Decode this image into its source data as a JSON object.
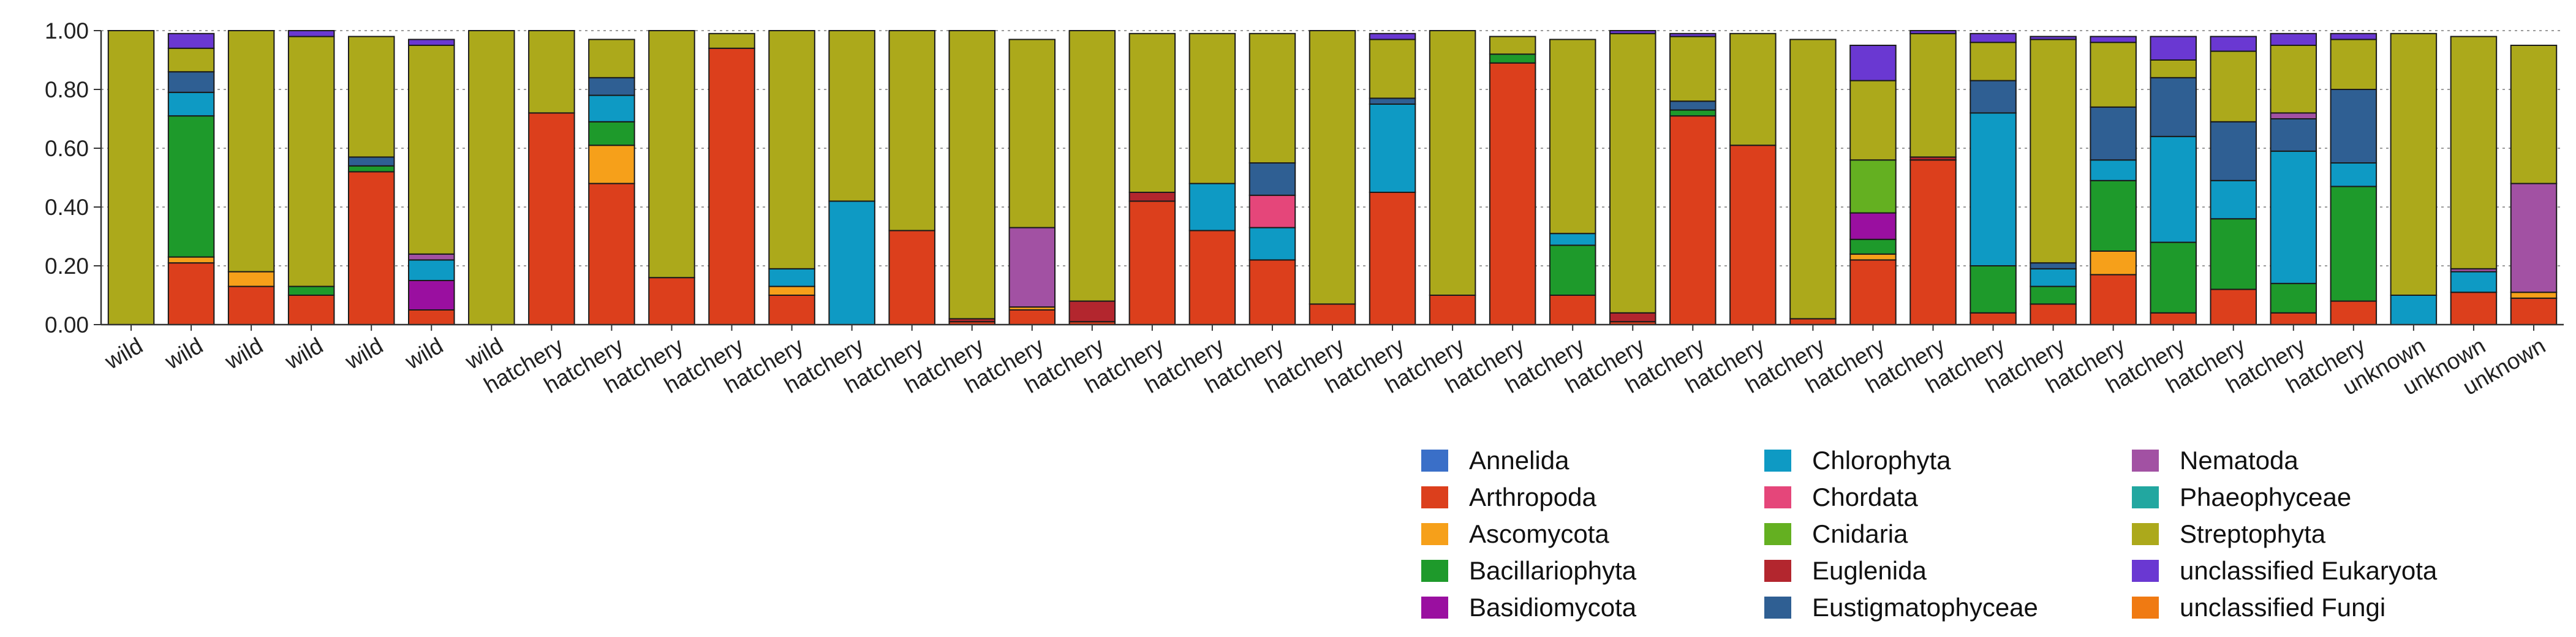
{
  "chart_data": {
    "type": "bar",
    "stacked": true,
    "ylim": [
      0,
      1
    ],
    "yticks": [
      "0.00",
      "0.20",
      "0.40",
      "0.60",
      "0.80",
      "1.00"
    ],
    "grid": "horizontal dotted",
    "legend_position": "bottom-right",
    "categories": [
      "wild",
      "wild",
      "wild",
      "wild",
      "wild",
      "wild",
      "wild",
      "hatchery",
      "hatchery",
      "hatchery",
      "hatchery",
      "hatchery",
      "hatchery",
      "hatchery",
      "hatchery",
      "hatchery",
      "hatchery",
      "hatchery",
      "hatchery",
      "hatchery",
      "hatchery",
      "hatchery",
      "hatchery",
      "hatchery",
      "hatchery",
      "hatchery",
      "hatchery",
      "hatchery",
      "hatchery",
      "hatchery",
      "hatchery",
      "hatchery",
      "hatchery",
      "hatchery",
      "hatchery",
      "hatchery",
      "hatchery",
      "hatchery",
      "unknown",
      "unknown",
      "unknown"
    ],
    "series": [
      {
        "name": "Annelida",
        "color": "#3a6fc8",
        "values": [
          0,
          0,
          0,
          0,
          0,
          0,
          0,
          0,
          0,
          0,
          0,
          0,
          0,
          0,
          0,
          0,
          0,
          0,
          0,
          0,
          0,
          0,
          0,
          0,
          0,
          0,
          0,
          0,
          0,
          0,
          0,
          0,
          0,
          0,
          0,
          0,
          0,
          0,
          0,
          0,
          0
        ]
      },
      {
        "name": "Arthropoda",
        "color": "#dc3f1c",
        "values": [
          0,
          0.21,
          0.13,
          0.1,
          0.52,
          0.05,
          0,
          0.72,
          0.48,
          0.16,
          0.94,
          0.1,
          0,
          0.32,
          0.01,
          0.05,
          0.01,
          0.42,
          0.32,
          0.22,
          0.07,
          0.45,
          0.1,
          0.89,
          0.1,
          0.01,
          0.71,
          0.61,
          0.02,
          0.22,
          0.56,
          0.04,
          0.07,
          0.17,
          0.04,
          0.12,
          0.04,
          0.08,
          0,
          0.11,
          0.09
        ]
      },
      {
        "name": "Ascomycota",
        "color": "#f6a01a",
        "values": [
          0,
          0.02,
          0.05,
          0,
          0,
          0,
          0,
          0,
          0.13,
          0,
          0,
          0.03,
          0,
          0,
          0,
          0.01,
          0,
          0,
          0,
          0,
          0,
          0,
          0,
          0,
          0,
          0,
          0,
          0,
          0,
          0.02,
          0,
          0,
          0,
          0.08,
          0,
          0,
          0,
          0,
          0,
          0,
          0.02
        ]
      },
      {
        "name": "Bacillariophyta",
        "color": "#1e9a2b",
        "values": [
          0,
          0.48,
          0,
          0.03,
          0.02,
          0,
          0,
          0,
          0.08,
          0,
          0,
          0,
          0,
          0,
          0,
          0,
          0,
          0,
          0,
          0,
          0,
          0,
          0,
          0.03,
          0.17,
          0,
          0.02,
          0,
          0,
          0.05,
          0,
          0.16,
          0.06,
          0.24,
          0.24,
          0.24,
          0.1,
          0.39,
          0,
          0,
          0
        ]
      },
      {
        "name": "Basidiomycota",
        "color": "#9a0fa0",
        "values": [
          0,
          0,
          0,
          0,
          0,
          0.1,
          0,
          0,
          0,
          0,
          0,
          0,
          0,
          0,
          0,
          0,
          0,
          0,
          0,
          0,
          0,
          0,
          0,
          0,
          0,
          0,
          0,
          0,
          0,
          0.09,
          0,
          0,
          0,
          0,
          0,
          0,
          0,
          0,
          0,
          0,
          0
        ]
      },
      {
        "name": "Chlorophyta",
        "color": "#0e9ac4",
        "values": [
          0,
          0.08,
          0,
          0,
          0,
          0.07,
          0,
          0,
          0.09,
          0,
          0,
          0.06,
          0.42,
          0,
          0,
          0,
          0,
          0,
          0.16,
          0.11,
          0,
          0.3,
          0,
          0,
          0.04,
          0,
          0,
          0,
          0,
          0,
          0,
          0.52,
          0.06,
          0.07,
          0.36,
          0.13,
          0.45,
          0.08,
          0.1,
          0.07,
          0
        ]
      },
      {
        "name": "Chordata",
        "color": "#e5467a",
        "values": [
          0,
          0,
          0,
          0,
          0,
          0,
          0,
          0,
          0,
          0,
          0,
          0,
          0,
          0,
          0,
          0,
          0,
          0,
          0,
          0.11,
          0,
          0,
          0,
          0,
          0,
          0,
          0,
          0,
          0,
          0,
          0,
          0,
          0,
          0,
          0,
          0,
          0,
          0,
          0,
          0,
          0
        ]
      },
      {
        "name": "Cnidaria",
        "color": "#64b021",
        "values": [
          0,
          0,
          0,
          0,
          0,
          0,
          0,
          0,
          0,
          0,
          0,
          0,
          0,
          0,
          0,
          0,
          0,
          0,
          0,
          0,
          0,
          0,
          0,
          0,
          0,
          0,
          0,
          0,
          0,
          0.18,
          0,
          0,
          0,
          0,
          0,
          0,
          0,
          0,
          0,
          0,
          0
        ]
      },
      {
        "name": "Euglenida",
        "color": "#b3262e",
        "values": [
          0,
          0,
          0,
          0,
          0,
          0,
          0,
          0,
          0,
          0,
          0,
          0,
          0,
          0,
          0.01,
          0,
          0.07,
          0.03,
          0,
          0,
          0,
          0,
          0,
          0,
          0,
          0.03,
          0,
          0,
          0,
          0,
          0.01,
          0,
          0,
          0,
          0,
          0,
          0,
          0,
          0,
          0,
          0
        ]
      },
      {
        "name": "Eustigmatophyceae",
        "color": "#2f5f93",
        "values": [
          0,
          0.07,
          0,
          0,
          0.03,
          0,
          0,
          0,
          0.06,
          0,
          0,
          0,
          0,
          0,
          0,
          0,
          0,
          0,
          0,
          0.11,
          0,
          0.02,
          0,
          0,
          0,
          0,
          0.03,
          0,
          0,
          0,
          0,
          0.11,
          0.02,
          0.18,
          0.2,
          0.2,
          0.11,
          0.25,
          0,
          0,
          0
        ]
      },
      {
        "name": "Nematoda",
        "color": "#a251a3",
        "values": [
          0,
          0,
          0,
          0,
          0,
          0.02,
          0,
          0,
          0,
          0,
          0,
          0,
          0,
          0,
          0,
          0.27,
          0,
          0,
          0,
          0,
          0,
          0,
          0,
          0,
          0,
          0,
          0,
          0,
          0,
          0,
          0,
          0,
          0,
          0,
          0,
          0,
          0.02,
          0,
          0,
          0.01,
          0.37
        ]
      },
      {
        "name": "Phaeophyceae",
        "color": "#22a7a0",
        "values": [
          0,
          0,
          0,
          0,
          0,
          0,
          0,
          0,
          0,
          0,
          0,
          0,
          0,
          0,
          0,
          0,
          0,
          0,
          0,
          0,
          0,
          0,
          0,
          0,
          0,
          0,
          0,
          0,
          0,
          0,
          0,
          0,
          0,
          0,
          0,
          0,
          0,
          0,
          0,
          0,
          0
        ]
      },
      {
        "name": "Streptophyta",
        "color": "#aca91b",
        "values": [
          1.0,
          0.08,
          0.82,
          0.85,
          0.41,
          0.71,
          1.0,
          0.28,
          0.13,
          0.84,
          0.05,
          0.81,
          0.58,
          0.68,
          0.98,
          0.64,
          0.92,
          0.54,
          0.51,
          0.44,
          0.93,
          0.2,
          0.9,
          0.06,
          0.66,
          0.95,
          0.22,
          0.38,
          0.95,
          0.27,
          0.42,
          0.13,
          0.76,
          0.22,
          0.06,
          0.24,
          0.23,
          0.17,
          0.89,
          0.79,
          0.47
        ]
      },
      {
        "name": "unclassified Eukaryota",
        "color": "#6a38d2",
        "values": [
          0,
          0.05,
          0,
          0.02,
          0,
          0.02,
          0,
          0,
          0,
          0,
          0,
          0,
          0,
          0,
          0,
          0,
          0,
          0,
          0,
          0,
          0,
          0.02,
          0,
          0,
          0,
          0.01,
          0.01,
          0,
          0,
          0.12,
          0.01,
          0.03,
          0.01,
          0.02,
          0.08,
          0.05,
          0.04,
          0.02,
          0,
          0,
          0
        ]
      },
      {
        "name": "unclassified Fungi",
        "color": "#f07a12",
        "values": [
          0,
          0,
          0,
          0,
          0,
          0,
          0,
          0,
          0,
          0,
          0,
          0,
          0,
          0,
          0,
          0,
          0,
          0,
          0,
          0,
          0,
          0,
          0,
          0,
          0,
          0,
          0,
          0,
          0,
          0,
          0,
          0,
          0,
          0,
          0,
          0,
          0,
          0,
          0,
          0,
          0
        ]
      }
    ]
  }
}
